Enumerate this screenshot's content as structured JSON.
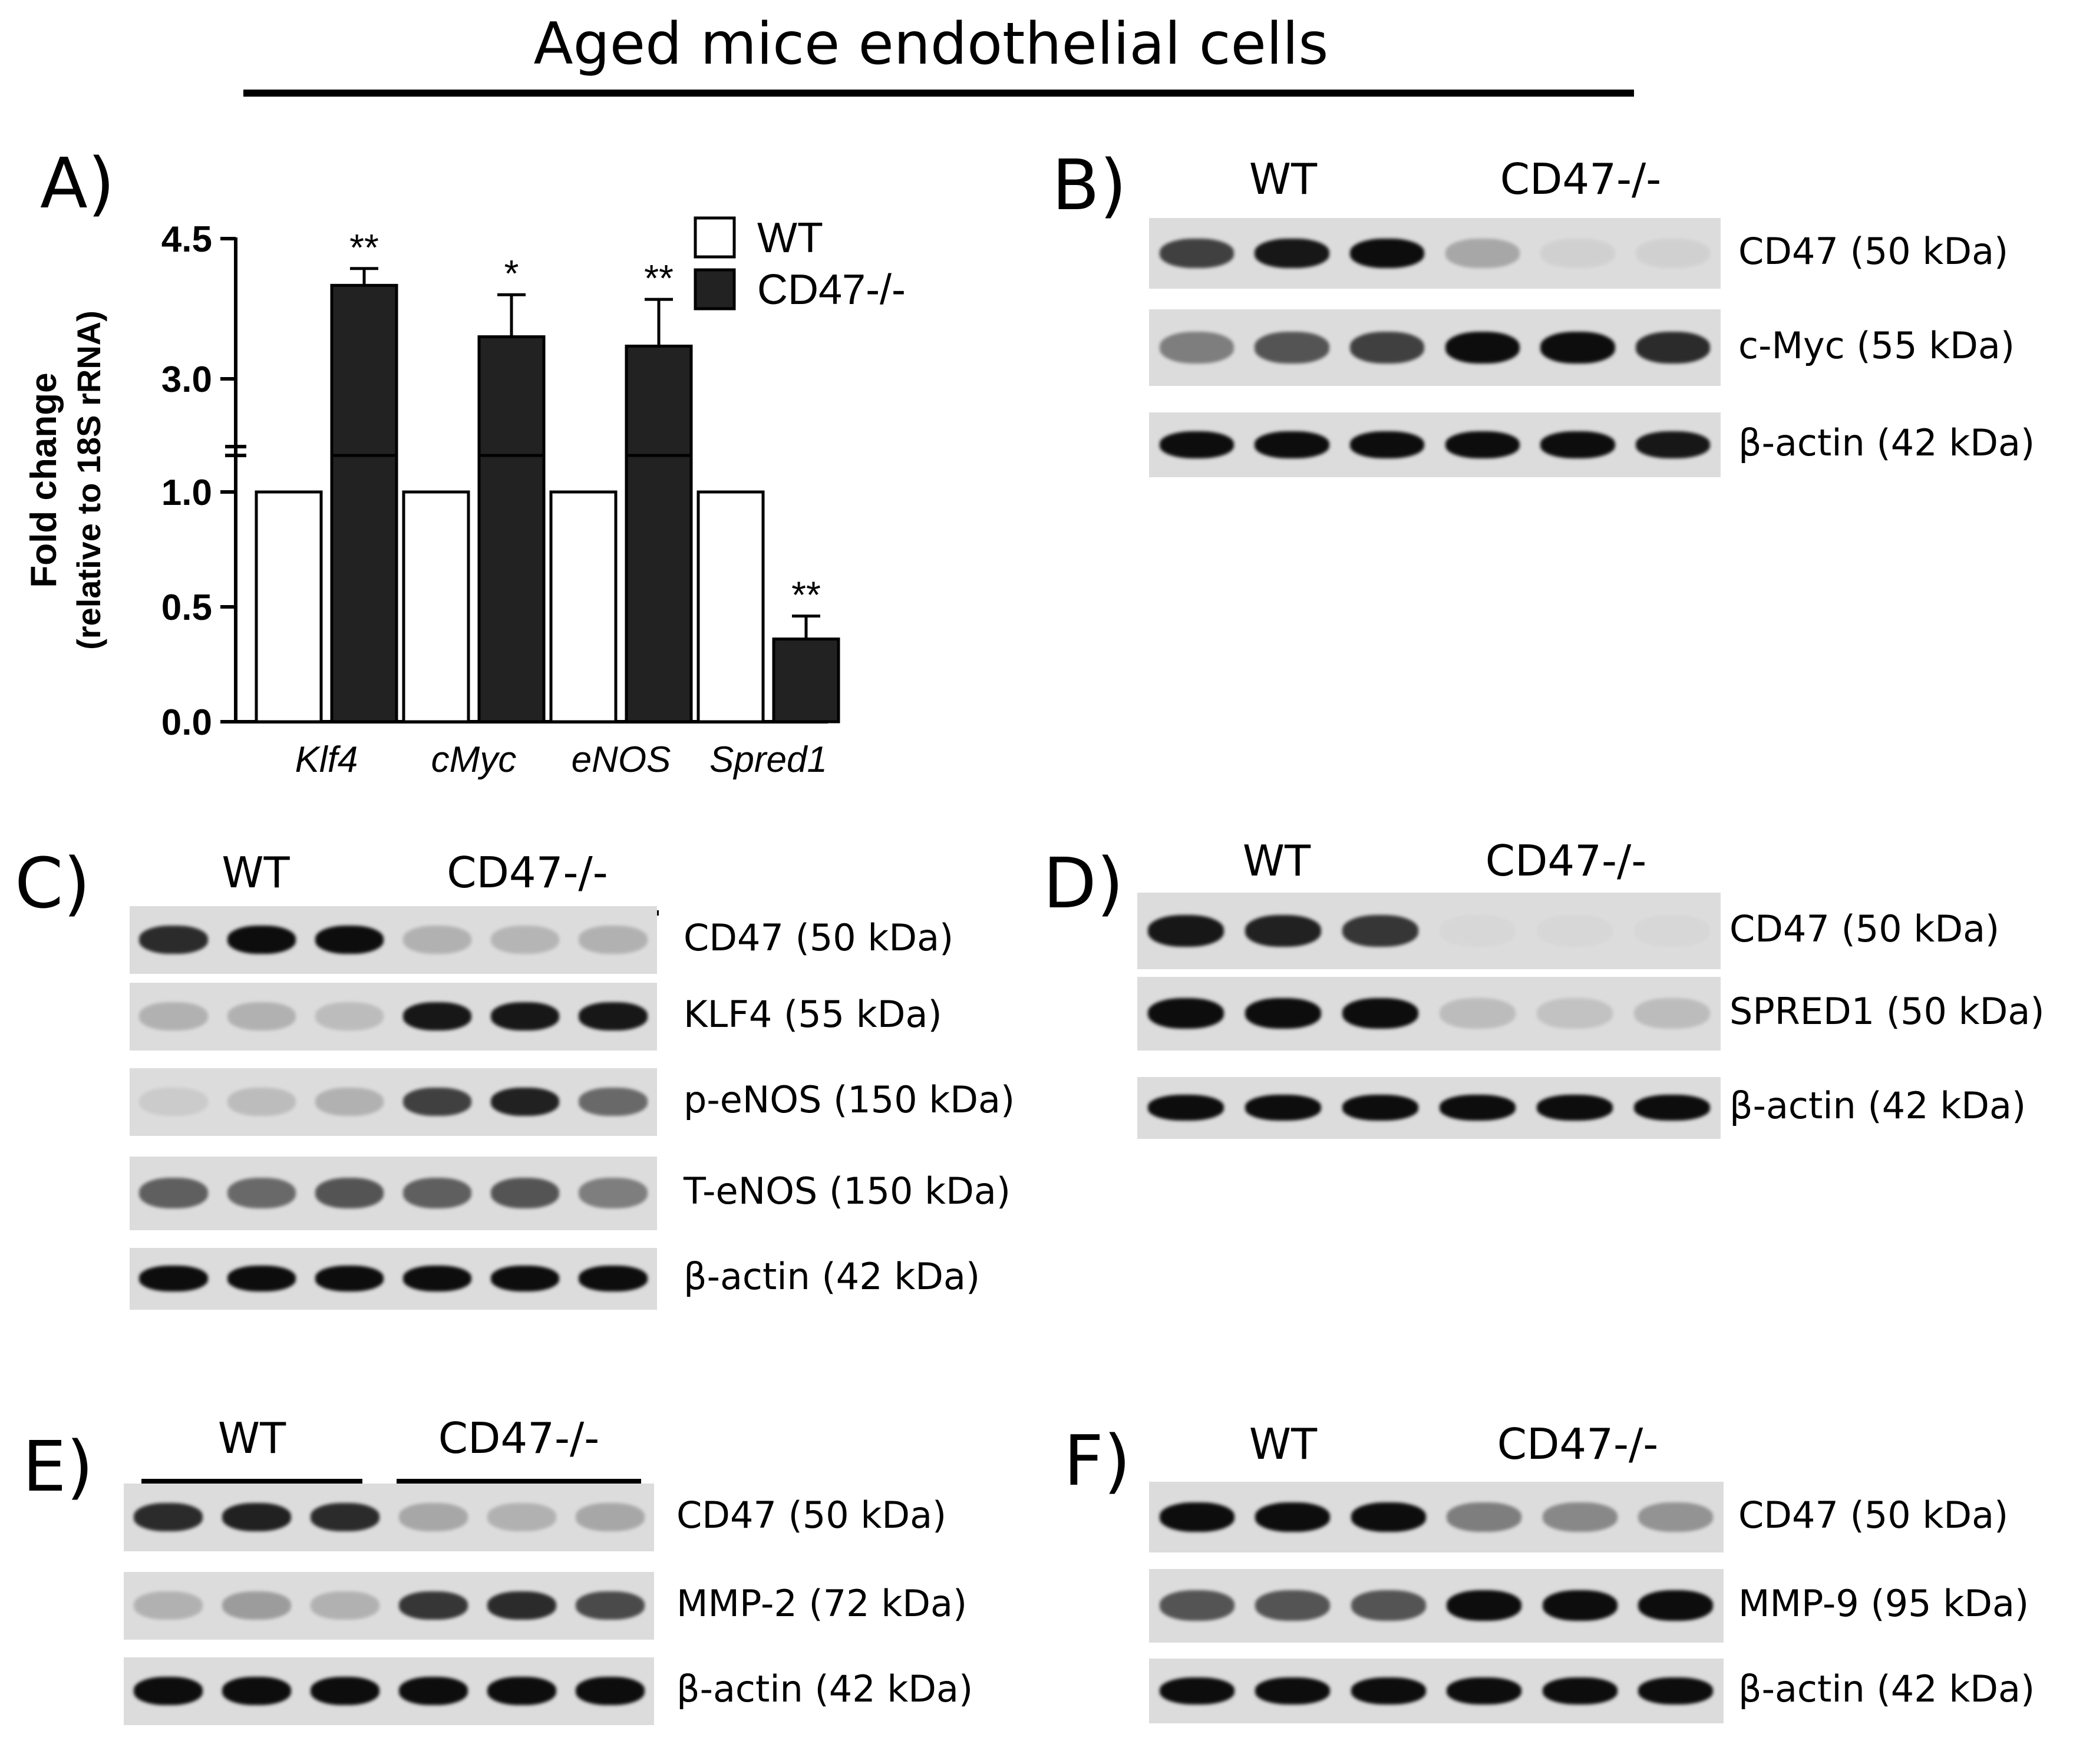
{
  "figure": {
    "title": "Aged mice endothelial cells"
  },
  "chart_data": {
    "type": "bar",
    "panel_label": "A)",
    "categories": [
      "Klf4",
      "cMyc",
      "eNOS",
      "Spred1"
    ],
    "series": [
      {
        "name": "WT",
        "values": [
          1.0,
          1.0,
          1.0,
          1.0
        ],
        "color": "#ffffff"
      },
      {
        "name": "CD47-/-",
        "values": [
          4.0,
          3.45,
          3.35,
          0.36
        ],
        "error": [
          0.18,
          0.45,
          0.5,
          0.1
        ],
        "color": "#222222"
      }
    ],
    "significance": [
      "**",
      "*",
      "**",
      "**"
    ],
    "ylabel": "Fold change",
    "ylabel_sub": "(relative to 18S rRNA)",
    "yticks": [
      "0.0",
      "0.5",
      "1.0",
      "3.0",
      "4.5"
    ],
    "ylim": [
      0,
      4.5
    ],
    "y_axis_break": [
      1.2,
      2.6
    ],
    "legend_position": "top-right"
  },
  "blots": [
    {
      "panel": "B)",
      "groups": [
        "WT",
        "CD47-/-"
      ],
      "rows": [
        {
          "label": "CD47 (50 kDa)",
          "intensities": [
            0.75,
            0.95,
            1.0,
            0.25,
            0.05,
            0.05
          ]
        },
        {
          "label": "c-Myc (55 kDa)",
          "intensities": [
            0.45,
            0.65,
            0.75,
            1.0,
            1.0,
            0.85
          ]
        },
        {
          "label": "β-actin (42 kDa)",
          "intensities": [
            1.0,
            1.0,
            1.0,
            1.0,
            1.0,
            0.95
          ]
        }
      ]
    },
    {
      "panel": "C)",
      "groups": [
        "WT",
        "CD47-/-"
      ],
      "rows": [
        {
          "label": "CD47 (50 kDa)",
          "intensities": [
            0.85,
            1.0,
            1.0,
            0.2,
            0.18,
            0.2
          ]
        },
        {
          "label": "KLF4 (55 kDa)",
          "intensities": [
            0.2,
            0.2,
            0.15,
            0.95,
            0.95,
            0.95
          ]
        },
        {
          "label": "p-eNOS (150 kDa)",
          "intensities": [
            0.08,
            0.15,
            0.2,
            0.75,
            0.9,
            0.55
          ]
        },
        {
          "label": "T-eNOS (150 kDa)",
          "intensities": [
            0.6,
            0.55,
            0.65,
            0.6,
            0.65,
            0.45
          ]
        },
        {
          "label": "β-actin (42 kDa)",
          "intensities": [
            1.0,
            1.0,
            1.0,
            1.0,
            1.0,
            1.0
          ]
        }
      ]
    },
    {
      "panel": "D)",
      "groups": [
        "WT",
        "CD47-/-"
      ],
      "rows": [
        {
          "label": "CD47 (50 kDa)",
          "intensities": [
            0.95,
            0.9,
            0.8,
            0.02,
            0.02,
            0.02
          ]
        },
        {
          "label": "SPRED1 (50 kDa)",
          "intensities": [
            1.0,
            1.0,
            1.0,
            0.15,
            0.12,
            0.15
          ]
        },
        {
          "label": "β-actin (42 kDa)",
          "intensities": [
            1.0,
            1.0,
            1.0,
            1.0,
            1.0,
            1.0
          ]
        }
      ]
    },
    {
      "panel": "E)",
      "groups": [
        "WT",
        "CD47-/-"
      ],
      "rows": [
        {
          "label": "CD47 (50 kDa)",
          "intensities": [
            0.85,
            0.9,
            0.85,
            0.25,
            0.2,
            0.25
          ]
        },
        {
          "label": "MMP-2 (72 kDa)",
          "intensities": [
            0.2,
            0.3,
            0.2,
            0.8,
            0.85,
            0.7
          ]
        },
        {
          "label": "β-actin (42 kDa)",
          "intensities": [
            1.0,
            1.0,
            1.0,
            1.0,
            1.0,
            1.0
          ]
        }
      ]
    },
    {
      "panel": "F)",
      "groups": [
        "WT",
        "CD47-/-"
      ],
      "rows": [
        {
          "label": "CD47 (50 kDa)",
          "intensities": [
            1.0,
            1.0,
            1.0,
            0.45,
            0.4,
            0.35
          ]
        },
        {
          "label": "MMP-9 (95 kDa)",
          "intensities": [
            0.65,
            0.65,
            0.65,
            1.0,
            1.0,
            1.0
          ]
        },
        {
          "label": "β-actin (42 kDa)",
          "intensities": [
            1.0,
            1.0,
            1.0,
            1.0,
            1.0,
            1.0
          ]
        }
      ]
    }
  ]
}
